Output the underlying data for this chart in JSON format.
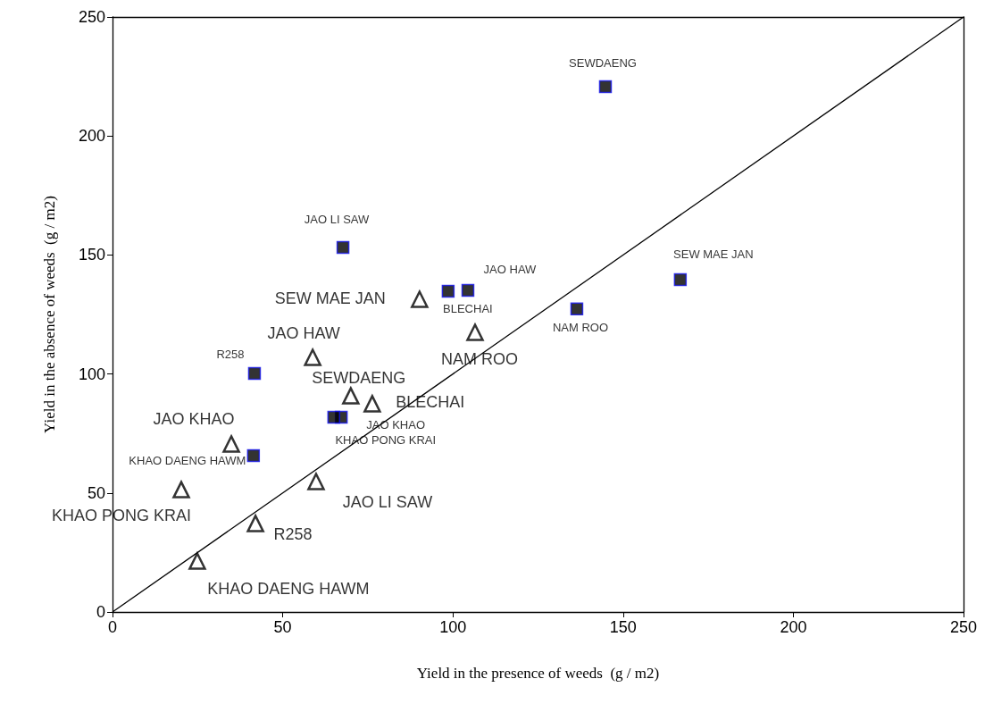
{
  "chart_data": {
    "type": "scatter",
    "xlabel": "Yield in the presence of weeds  (g / m2)",
    "ylabel": "Yield in the absence of weeds  (g / m2)",
    "xlim": [
      0,
      250
    ],
    "xticks": [
      0,
      50,
      100,
      150,
      200,
      250
    ],
    "ylim": [
      0,
      250
    ],
    "yticks": [
      0,
      50,
      100,
      150,
      200,
      250
    ],
    "grid": false,
    "series": [
      {
        "marker": "square",
        "color": "#000000",
        "x": [
          144.8,
          67.7,
          104.4,
          98.6,
          166.8,
          136.4,
          41.7,
          67.2,
          65,
          41.4
        ],
        "values": [
          220.7,
          153.2,
          135.1,
          134.8,
          139.6,
          127.3,
          100.2,
          81.8,
          81.8,
          65.7
        ],
        "value_labels": [
          "SEWDAENG",
          "JAO LI SAW",
          "JAO HAW",
          "BLECHAI",
          "SEW MAE JAN",
          "NAM ROO",
          "R258",
          "JAO KHAO",
          "KHAO PONG KRAI",
          "KHAO DAENG HAWM"
        ]
      },
      {
        "marker": "triangle",
        "color": "#000000",
        "x": [
          90.2,
          106.5,
          58.8,
          70,
          76.3,
          34.9,
          20.2,
          59.8,
          42,
          24.9
        ],
        "values": [
          131.4,
          117.5,
          107,
          90.8,
          87.5,
          70.6,
          51.4,
          54.8,
          37.2,
          21.4
        ],
        "value_labels": [
          "SEW MAE JAN",
          "NAM ROO",
          "JAO HAW",
          "SEWDAENG",
          "BLECHAI",
          "JAO KHAO",
          "KHAO PONG KRAI",
          "JAO LI SAW",
          "R258",
          "KHAO DAENG HAWM"
        ]
      },
      {
        "type": "line",
        "marker": "none",
        "line_style": "solid",
        "color": "#000000",
        "x": [
          0,
          250
        ],
        "values": [
          0,
          250
        ]
      }
    ]
  }
}
